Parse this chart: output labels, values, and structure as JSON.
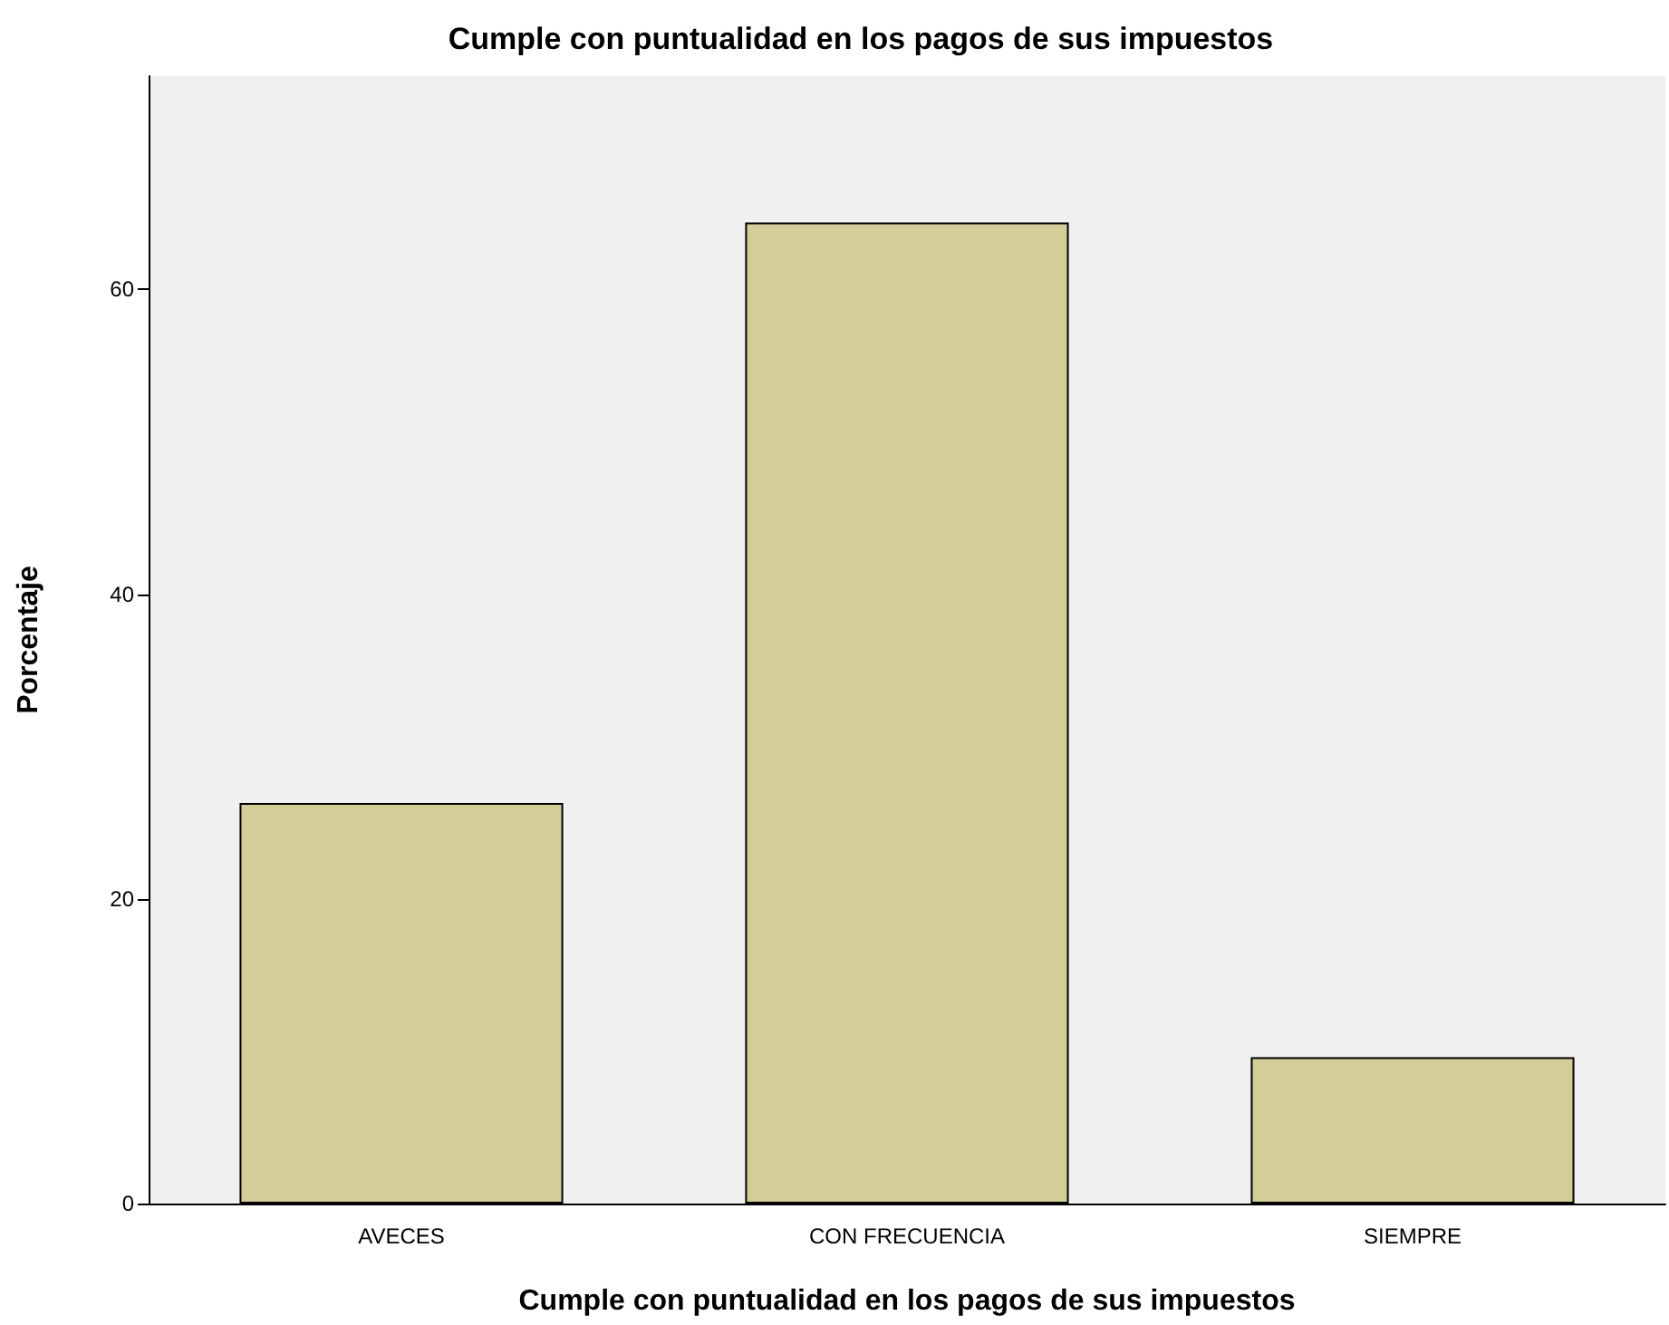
{
  "chart_data": {
    "type": "bar",
    "title": "Cumple con puntualidad en los pagos de sus impuestos",
    "xlabel": "Cumple con puntualidad en los pagos de sus impuestos",
    "ylabel": "Porcentaje",
    "categories": [
      "AVECES",
      "CON FRECUENCIA",
      "SIEMPRE"
    ],
    "values": [
      26.3,
      64.4,
      9.6
    ],
    "color": "#d3cd98",
    "ylim": [
      0,
      74
    ],
    "yticks": [
      0,
      20,
      40,
      60
    ]
  }
}
